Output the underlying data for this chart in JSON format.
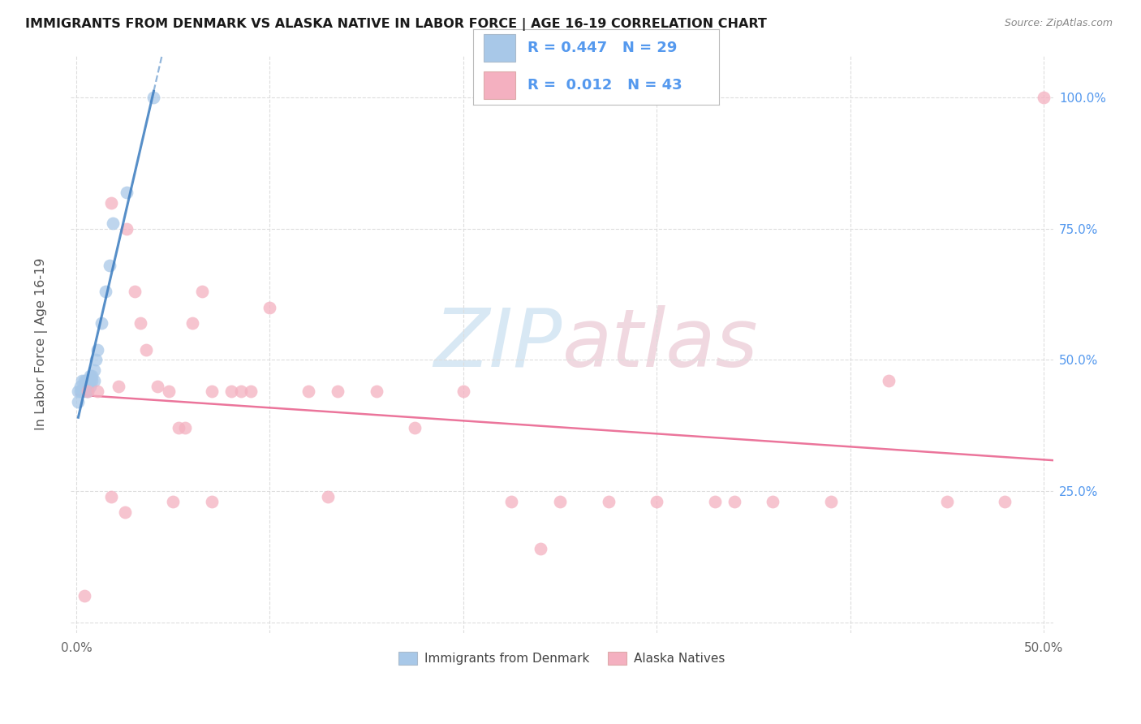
{
  "title": "IMMIGRANTS FROM DENMARK VS ALASKA NATIVE IN LABOR FORCE | AGE 16-19 CORRELATION CHART",
  "source": "Source: ZipAtlas.com",
  "ylabel": "In Labor Force | Age 16-19",
  "xlim": [
    -0.003,
    0.505
  ],
  "ylim": [
    -0.02,
    1.08
  ],
  "color_blue": "#a8c8e8",
  "color_pink": "#f4b0c0",
  "color_blue_line": "#3a7bbf",
  "color_pink_line": "#e85d8a",
  "color_blue_dark": "#2060a0",
  "color_right_axis": "#5599ee",
  "watermark_color": "#d8e8f4",
  "watermark_color2": "#f0d8e0",
  "grid_color": "#dddddd",
  "background_color": "#ffffff",
  "legend_r1": "R = 0.447",
  "legend_n1": "N = 29",
  "legend_r2": "R = 0.012",
  "legend_n2": "N = 43",
  "legend_label1": "Immigrants from Denmark",
  "legend_label2": "Alaska Natives",
  "denmark_x": [
    0.001,
    0.001,
    0.002,
    0.002,
    0.003,
    0.003,
    0.004,
    0.004,
    0.005,
    0.005,
    0.005,
    0.006,
    0.006,
    0.006,
    0.007,
    0.007,
    0.007,
    0.008,
    0.008,
    0.009,
    0.009,
    0.01,
    0.011,
    0.013,
    0.015,
    0.017,
    0.019,
    0.026,
    0.04
  ],
  "denmark_y": [
    0.42,
    0.44,
    0.44,
    0.45,
    0.44,
    0.46,
    0.45,
    0.46,
    0.44,
    0.45,
    0.46,
    0.44,
    0.45,
    0.46,
    0.45,
    0.46,
    0.47,
    0.46,
    0.47,
    0.46,
    0.48,
    0.5,
    0.52,
    0.57,
    0.63,
    0.68,
    0.76,
    0.82,
    1.0
  ],
  "alaska_x": [
    0.004,
    0.006,
    0.011,
    0.018,
    0.022,
    0.026,
    0.03,
    0.033,
    0.036,
    0.042,
    0.048,
    0.053,
    0.056,
    0.06,
    0.065,
    0.07,
    0.08,
    0.085,
    0.09,
    0.1,
    0.12,
    0.135,
    0.155,
    0.175,
    0.2,
    0.225,
    0.25,
    0.275,
    0.3,
    0.33,
    0.36,
    0.39,
    0.42,
    0.45,
    0.48,
    0.5,
    0.018,
    0.025,
    0.05,
    0.07,
    0.13,
    0.24,
    0.34
  ],
  "alaska_y": [
    0.05,
    0.44,
    0.44,
    0.8,
    0.45,
    0.75,
    0.63,
    0.57,
    0.52,
    0.45,
    0.44,
    0.37,
    0.37,
    0.57,
    0.63,
    0.44,
    0.44,
    0.44,
    0.44,
    0.6,
    0.44,
    0.44,
    0.44,
    0.37,
    0.44,
    0.23,
    0.23,
    0.23,
    0.23,
    0.23,
    0.23,
    0.23,
    0.46,
    0.23,
    0.23,
    1.0,
    0.24,
    0.21,
    0.23,
    0.23,
    0.24,
    0.14,
    0.23
  ]
}
